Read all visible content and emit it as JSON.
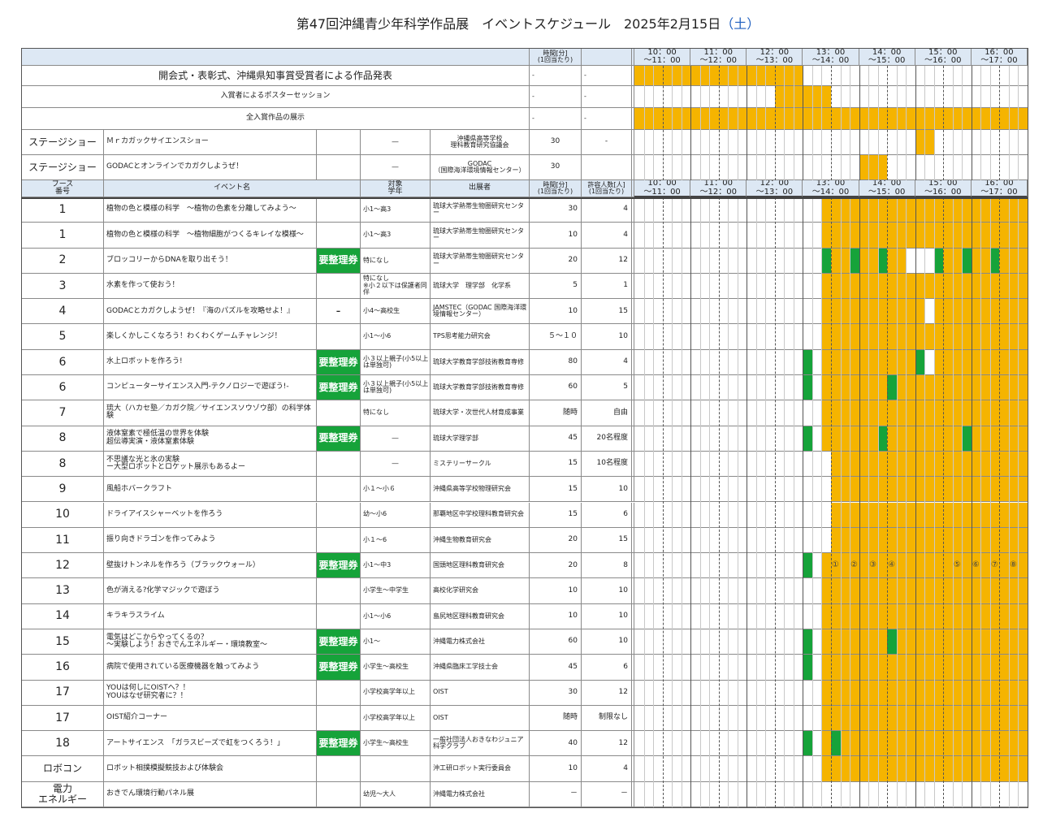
{
  "title": "第47回沖縄青少年科学作品展　イベントスケジュール　2025年2月15日",
  "weekday": "（土）",
  "header_top": {
    "time": "時間[分]\n(1回当たり)"
  },
  "header": {
    "booth": "ブース\n番号",
    "event": "イベント名",
    "target": "対象\n学年",
    "organizer": "出展者",
    "time": "時間[分]\n(1回当たり)",
    "capacity": "許容人数[人]\n(1回当たり)"
  },
  "hours": [
    "10：00\n～11：00",
    "11：00\n～12：00",
    "12：00\n～13：00",
    "13：00\n～14：00",
    "14：00\n～15：00",
    "15：00\n～16：00",
    "16：00\n～17：00"
  ],
  "general": [
    {
      "event": "開会式・表彰式、沖縄県知事賞受賞者による作品発表",
      "time": "-",
      "capacity": "-"
    },
    {
      "event": "入賞者によるポスターセッション",
      "time": "-",
      "capacity": "-"
    },
    {
      "event": "全入賞作品の展示",
      "time": "-",
      "capacity": "-"
    }
  ],
  "stage": [
    {
      "booth": "ステージショー",
      "event": "Ｍｒカガックサイエンスショー",
      "target": "―",
      "organizer": "沖縄県高等学校\n理科教育研究協議会",
      "time": "30",
      "capacity": "-"
    },
    {
      "booth": "ステージショー",
      "event": "GODACとオンラインでカガクしようぜ！",
      "target": "―",
      "organizer": "GODAC\n（国際海洋環境情報センター）",
      "time": "30"
    }
  ],
  "events": [
    {
      "booth": "1",
      "event": "植物の色と模様の科学　～植物の色素を分離してみよう～",
      "target": "小1～高3",
      "organizer": "琉球大学熱帯生物圏研究センター",
      "time": "30",
      "capacity": "4"
    },
    {
      "booth": "1",
      "event": "植物の色と模様の科学　～植物細胞がつくるキレイな模様～",
      "target": "小1～高3",
      "organizer": "琉球大学熱帯生物圏研究センター",
      "time": "10",
      "capacity": "4"
    },
    {
      "booth": "2",
      "event": "ブロッコリーからDNAを取り出そう！",
      "ticket": "要整理券",
      "target": "特になし",
      "organizer": "琉球大学熱帯生物圏研究センター",
      "time": "20",
      "capacity": "12"
    },
    {
      "booth": "3",
      "event": "水素を作って使おう！",
      "target": "特になし\n※小２以下は保護者同伴",
      "organizer": "琉球大学　理学部　化学系",
      "time": "5",
      "capacity": "1"
    },
    {
      "booth": "4",
      "event": "GODACとカガクしようぜ！『海のパズルを攻略せよ！』",
      "ticket": "-",
      "target": "小4～高校生",
      "organizer": "JAMSTEC（GODAC 国際海洋環境情報センター）",
      "time": "10",
      "capacity": "15"
    },
    {
      "booth": "5",
      "event": "楽しくかしこくなろう！わくわくゲームチャレンジ！",
      "target": "小1～小6",
      "organizer": "TPS思考能力研究会",
      "time": "５～１０",
      "capacity": "10"
    },
    {
      "booth": "6",
      "event": "水上ロボットを作ろう!",
      "ticket": "要整理券",
      "target": "小３以上親子(小5以上は単独可)",
      "organizer": "琉球大学教育学部技術教育専修",
      "time": "80",
      "capacity": "4"
    },
    {
      "booth": "6",
      "event": "コンピューターサイエンス入門-テクノロジーで遊ぼう!-",
      "ticket": "要整理券",
      "target": "小３以上親子(小5以上は単独可)",
      "organizer": "琉球大学教育学部技術教育専修",
      "time": "60",
      "capacity": "5"
    },
    {
      "booth": "7",
      "event": "琉大（ハカセ塾／カガク院／サイエンスソウゾウ部）の科学体験",
      "target": "特になし",
      "organizer": "琉球大学・次世代人材育成事業",
      "time": "随時",
      "capacity": "自由"
    },
    {
      "booth": "8",
      "event": "液体窒素で極低温の世界を体験\n超伝導実演・液体窒素体験",
      "ticket": "要整理券",
      "target": "―",
      "organizer": "琉球大学理学部",
      "time": "45",
      "capacity": "20名程度"
    },
    {
      "booth": "8",
      "event": "不思議な光と氷の実験\nー大型ロボットとロケット展示もあるよー",
      "target": "―",
      "organizer": "ミステリーサークル",
      "time": "15",
      "capacity": "10名程度"
    },
    {
      "booth": "9",
      "event": "風船ホバークラフト",
      "target": "小１～小６",
      "organizer": "沖縄県高等学校物理研究会",
      "time": "15",
      "capacity": "10"
    },
    {
      "booth": "10",
      "event": "ドライアイスシャーベットを作ろう",
      "target": "幼～小6",
      "organizer": "那覇地区中学校理科教育研究会",
      "time": "15",
      "capacity": "6"
    },
    {
      "booth": "11",
      "event": "振り向きドラゴンを作ってみよう",
      "target": "小１～6",
      "organizer": "沖縄生物教育研究会",
      "time": "20",
      "capacity": "15"
    },
    {
      "booth": "12",
      "event": "壁抜けトンネルを作ろう（ブラックウォール）",
      "ticket": "要整理券",
      "target": "小1～中3",
      "organizer": "国頭地区理科教育研究会",
      "time": "20",
      "capacity": "8",
      "slot_labels": [
        "①",
        "②",
        "③",
        "④",
        "⑤",
        "⑥",
        "⑦",
        "⑧"
      ]
    },
    {
      "booth": "13",
      "event": "色が消える?化学マジックで遊ぼう",
      "target": "小学生～中学生",
      "organizer": "高校化学研究会",
      "time": "10",
      "capacity": "10"
    },
    {
      "booth": "14",
      "event": "キラキラスライム",
      "target": "小1～小6",
      "organizer": "島尻地区理科教育研究会",
      "time": "10",
      "capacity": "10"
    },
    {
      "booth": "15",
      "event": "電気はどこからやってくるの？\n～実験しよう！おきでんエネルギー・環境教室～",
      "ticket": "要整理券",
      "target": "小1～",
      "organizer": "沖縄電力株式会社",
      "time": "60",
      "capacity": "10"
    },
    {
      "booth": "16",
      "event": "病院で使用されている医療機器を触ってみよう",
      "ticket": "要整理券",
      "target": "小学生～高校生",
      "organizer": "沖縄県臨床工学技士会",
      "time": "45",
      "capacity": "6"
    },
    {
      "booth": "17",
      "event": "YOUは何しにOISTへ？！\nYOUはなぜ研究者に？！",
      "target": "小学校高学年以上",
      "organizer": "OIST",
      "time": "30",
      "capacity": "12"
    },
    {
      "booth": "17",
      "event": "OIST紹介コーナー",
      "target": "小学校高学年以上",
      "organizer": "OIST",
      "time": "随時",
      "capacity": "制限なし"
    },
    {
      "booth": "18",
      "event": "アートサイエンス　「ガラスビーズで虹をつくろう！」",
      "ticket": "要整理券",
      "target": "小学生～高校生",
      "organizer": "一般社団法人おきなわジュニア科学クラブ",
      "time": "40",
      "capacity": "12"
    },
    {
      "booth": "ロボコン",
      "event": "ロボット相撲模擬競技および体験会",
      "organizer": "沖工研ロボット実行委員会",
      "time": "10",
      "capacity": "4"
    },
    {
      "booth": "電力\nエネルギー",
      "event": "おきでん環境行動パネル展",
      "target": "幼児～大人",
      "organizer": "沖縄電力株式会社",
      "time": "－",
      "capacity": "－"
    }
  ]
}
